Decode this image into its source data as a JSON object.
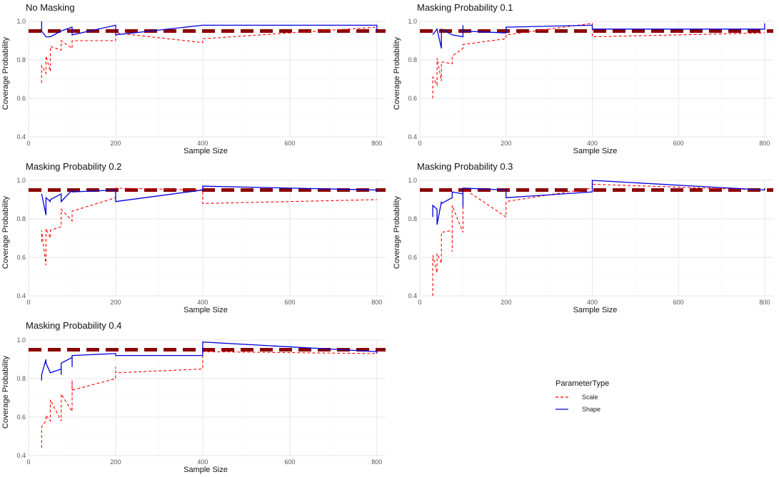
{
  "chart_data": [
    {
      "type": "line",
      "title": "No Masking",
      "xlabel": "Sample Size",
      "ylabel": "Coverage Probability",
      "xlim": [
        0,
        820
      ],
      "ylim": [
        0.4,
        1.0
      ],
      "xticks": [
        0,
        200,
        400,
        600,
        800
      ],
      "yticks": [
        0.4,
        0.6,
        0.8,
        1.0
      ],
      "reference_line": 0.95,
      "series": [
        {
          "name": "Scale",
          "points": [
            [
              30,
              0.68
            ],
            [
              30,
              0.77
            ],
            [
              40,
              0.73
            ],
            [
              40,
              0.82
            ],
            [
              50,
              0.74
            ],
            [
              50,
              0.81
            ],
            [
              50,
              0.87
            ],
            [
              75,
              0.85
            ],
            [
              75,
              0.9
            ],
            [
              100,
              0.86
            ],
            [
              100,
              0.9
            ],
            [
              200,
              0.9
            ],
            [
              200,
              0.94
            ],
            [
              400,
              0.89
            ],
            [
              400,
              0.91
            ],
            [
              800,
              0.97
            ]
          ]
        },
        {
          "name": "Shape",
          "points": [
            [
              30,
              1.0
            ],
            [
              30,
              0.95
            ],
            [
              40,
              0.92
            ],
            [
              50,
              0.92
            ],
            [
              75,
              0.95
            ],
            [
              100,
              0.97
            ],
            [
              100,
              0.93
            ],
            [
              200,
              0.98
            ],
            [
              200,
              0.93
            ],
            [
              400,
              0.98
            ],
            [
              800,
              0.98
            ],
            [
              800,
              0.95
            ]
          ]
        }
      ]
    },
    {
      "type": "line",
      "title": "Masking Probability 0.1",
      "xlabel": "Sample Size",
      "ylabel": "Coverage Probability",
      "xlim": [
        0,
        820
      ],
      "ylim": [
        0.4,
        1.0
      ],
      "xticks": [
        0,
        200,
        400,
        600,
        800
      ],
      "yticks": [
        0.4,
        0.6,
        0.8,
        1.0
      ],
      "reference_line": 0.95,
      "series": [
        {
          "name": "Scale",
          "points": [
            [
              30,
              0.6
            ],
            [
              30,
              0.71
            ],
            [
              40,
              0.67
            ],
            [
              40,
              0.81
            ],
            [
              50,
              0.69
            ],
            [
              50,
              0.79
            ],
            [
              75,
              0.78
            ],
            [
              75,
              0.82
            ],
            [
              100,
              0.86
            ],
            [
              100,
              0.88
            ],
            [
              200,
              0.91
            ],
            [
              200,
              0.93
            ],
            [
              400,
              0.99
            ],
            [
              400,
              0.92
            ],
            [
              800,
              0.94
            ]
          ]
        },
        {
          "name": "Shape",
          "points": [
            [
              30,
              0.93
            ],
            [
              40,
              0.96
            ],
            [
              50,
              0.86
            ],
            [
              50,
              0.96
            ],
            [
              75,
              0.93
            ],
            [
              100,
              0.92
            ],
            [
              100,
              0.98
            ],
            [
              100,
              0.95
            ],
            [
              200,
              0.94
            ],
            [
              200,
              0.97
            ],
            [
              400,
              0.98
            ],
            [
              400,
              0.96
            ],
            [
              800,
              0.96
            ],
            [
              800,
              0.99
            ]
          ]
        }
      ]
    },
    {
      "type": "line",
      "title": "Masking Probability 0.2",
      "xlabel": "Sample Size",
      "ylabel": "Coverage Probability",
      "xlim": [
        0,
        820
      ],
      "ylim": [
        0.4,
        1.0
      ],
      "xticks": [
        0,
        200,
        400,
        600,
        800
      ],
      "yticks": [
        0.4,
        0.6,
        0.8,
        1.0
      ],
      "reference_line": 0.95,
      "series": [
        {
          "name": "Scale",
          "points": [
            [
              30,
              0.68
            ],
            [
              30,
              0.74
            ],
            [
              40,
              0.56
            ],
            [
              40,
              0.75
            ],
            [
              50,
              0.7
            ],
            [
              50,
              0.74
            ],
            [
              75,
              0.76
            ],
            [
              75,
              0.85
            ],
            [
              100,
              0.79
            ],
            [
              100,
              0.84
            ],
            [
              200,
              0.91
            ],
            [
              200,
              0.96
            ],
            [
              400,
              0.95
            ],
            [
              400,
              0.88
            ],
            [
              800,
              0.9
            ]
          ]
        },
        {
          "name": "Shape",
          "points": [
            [
              30,
              0.93
            ],
            [
              40,
              0.82
            ],
            [
              40,
              0.91
            ],
            [
              50,
              0.89
            ],
            [
              50,
              0.9
            ],
            [
              75,
              0.93
            ],
            [
              75,
              0.89
            ],
            [
              100,
              0.95
            ],
            [
              100,
              0.94
            ],
            [
              200,
              0.95
            ],
            [
              200,
              0.89
            ],
            [
              400,
              0.95
            ],
            [
              400,
              0.97
            ],
            [
              800,
              0.95
            ],
            [
              800,
              0.94
            ]
          ]
        }
      ]
    },
    {
      "type": "line",
      "title": "Masking Probability 0.3",
      "xlabel": "Sample Size",
      "ylabel": "Coverage Probability",
      "xlim": [
        0,
        820
      ],
      "ylim": [
        0.4,
        1.0
      ],
      "xticks": [
        0,
        200,
        400,
        600,
        800
      ],
      "yticks": [
        0.4,
        0.6,
        0.8,
        1.0
      ],
      "reference_line": 0.95,
      "series": [
        {
          "name": "Scale",
          "points": [
            [
              30,
              0.4
            ],
            [
              30,
              0.61
            ],
            [
              40,
              0.52
            ],
            [
              40,
              0.62
            ],
            [
              50,
              0.57
            ],
            [
              50,
              0.73
            ],
            [
              75,
              0.74
            ],
            [
              75,
              0.63
            ],
            [
              75,
              0.87
            ],
            [
              100,
              0.73
            ],
            [
              100,
              0.96
            ],
            [
              200,
              0.81
            ],
            [
              200,
              0.89
            ],
            [
              400,
              0.96
            ],
            [
              400,
              0.98
            ],
            [
              800,
              0.95
            ]
          ]
        },
        {
          "name": "Shape",
          "points": [
            [
              30,
              0.81
            ],
            [
              30,
              0.87
            ],
            [
              40,
              0.85
            ],
            [
              40,
              0.77
            ],
            [
              50,
              0.89
            ],
            [
              50,
              0.88
            ],
            [
              75,
              0.91
            ],
            [
              75,
              0.94
            ],
            [
              100,
              0.93
            ],
            [
              100,
              0.86
            ],
            [
              100,
              0.96
            ],
            [
              200,
              0.95
            ],
            [
              200,
              0.91
            ],
            [
              400,
              0.94
            ],
            [
              400,
              1.0
            ],
            [
              800,
              0.95
            ],
            [
              800,
              0.96
            ]
          ]
        }
      ]
    },
    {
      "type": "line",
      "title": "Masking Probability 0.4",
      "xlabel": "Sample Size",
      "ylabel": "Coverage Probability",
      "xlim": [
        0,
        820
      ],
      "ylim": [
        0.4,
        1.0
      ],
      "xticks": [
        0,
        200,
        400,
        600,
        800
      ],
      "yticks": [
        0.4,
        0.6,
        0.8,
        1.0
      ],
      "reference_line": 0.95,
      "series": [
        {
          "name": "Scale",
          "points": [
            [
              30,
              0.44
            ],
            [
              30,
              0.55
            ],
            [
              40,
              0.58
            ],
            [
              40,
              0.61
            ],
            [
              50,
              0.58
            ],
            [
              50,
              0.69
            ],
            [
              75,
              0.58
            ],
            [
              75,
              0.72
            ],
            [
              100,
              0.63
            ],
            [
              100,
              0.79
            ],
            [
              100,
              0.74
            ],
            [
              200,
              0.8
            ],
            [
              200,
              0.86
            ],
            [
              200,
              0.83
            ],
            [
              400,
              0.85
            ],
            [
              400,
              0.95
            ],
            [
              400,
              0.94
            ],
            [
              800,
              0.93
            ]
          ]
        },
        {
          "name": "Shape",
          "points": [
            [
              30,
              0.79
            ],
            [
              30,
              0.82
            ],
            [
              40,
              0.9
            ],
            [
              40,
              0.88
            ],
            [
              50,
              0.83
            ],
            [
              75,
              0.85
            ],
            [
              75,
              0.82
            ],
            [
              75,
              0.88
            ],
            [
              100,
              0.91
            ],
            [
              100,
              0.86
            ],
            [
              100,
              0.92
            ],
            [
              200,
              0.93
            ],
            [
              200,
              0.92
            ],
            [
              400,
              0.92
            ],
            [
              400,
              0.99
            ],
            [
              800,
              0.94
            ],
            [
              800,
              0.93
            ]
          ]
        }
      ]
    }
  ],
  "legend": {
    "title": "ParameterType",
    "items": [
      {
        "label": "Scale",
        "color": "#ff0000",
        "dash": true
      },
      {
        "label": "Shape",
        "color": "#0000dd",
        "dash": false
      }
    ]
  },
  "colors": {
    "scale": "#ff0000",
    "shape": "#0000dd",
    "reference": "#8b0000"
  }
}
